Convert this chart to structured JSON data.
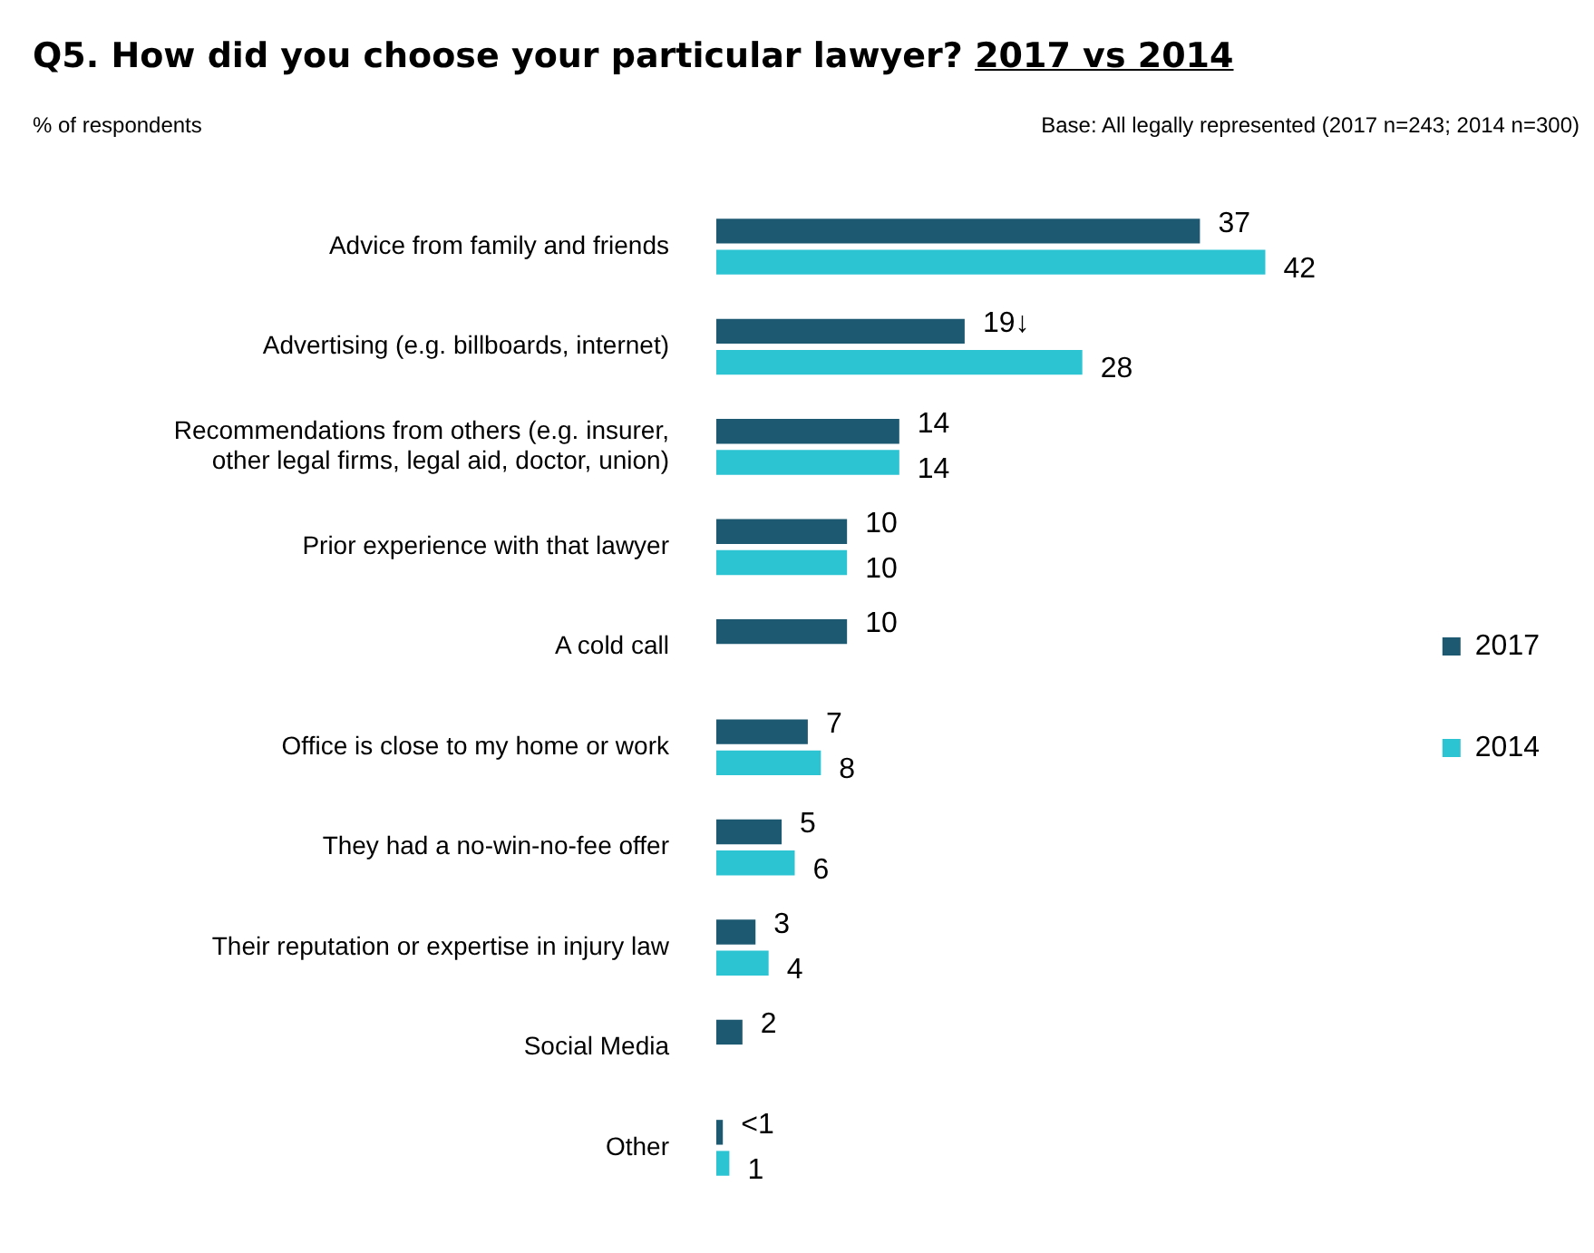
{
  "chart_data": {
    "type": "bar",
    "orientation": "horizontal",
    "title": "Q5. How did you choose your particular lawyer? $^{}$2017 vs 2014",
    "subtitle": "% of respondents",
    "annotations": [
      "Base: All legally represented (2017 n=243; 2014 n=300)"
    ],
    "categories": [
      "Advice from family and friends",
      "Advertising (e.g. billboards, internet)",
      "Recommendations from others (e.g. insurer, other legal firms, legal aid, doctor, union)",
      "Prior experience with that lawyer",
      "A cold call",
      "Office is close to my home or work",
      "They had a no-win-no-fee offer",
      "Their reputation or expertise in injury law",
      "Social Media",
      "Other"
    ],
    "series": [
      {
        "name": "2017",
        "color": "#1d5a72",
        "values": [
          37,
          19,
          14,
          10,
          10,
          7,
          5,
          3,
          2,
          0.5
        ],
        "value_labels": [
          "37",
          "19↓",
          "14",
          "10",
          "10",
          "7",
          "5",
          "3",
          "2",
          "<1"
        ]
      },
      {
        "name": "2014",
        "color": "#2cc3d3",
        "values": [
          42,
          28,
          14,
          10,
          null,
          8,
          6,
          4,
          null,
          1
        ],
        "value_labels": [
          "42",
          "28",
          "14",
          "10",
          null,
          "8",
          "6",
          "4",
          null,
          "1"
        ]
      }
    ],
    "legend": "right",
    "grid": false
  }
}
